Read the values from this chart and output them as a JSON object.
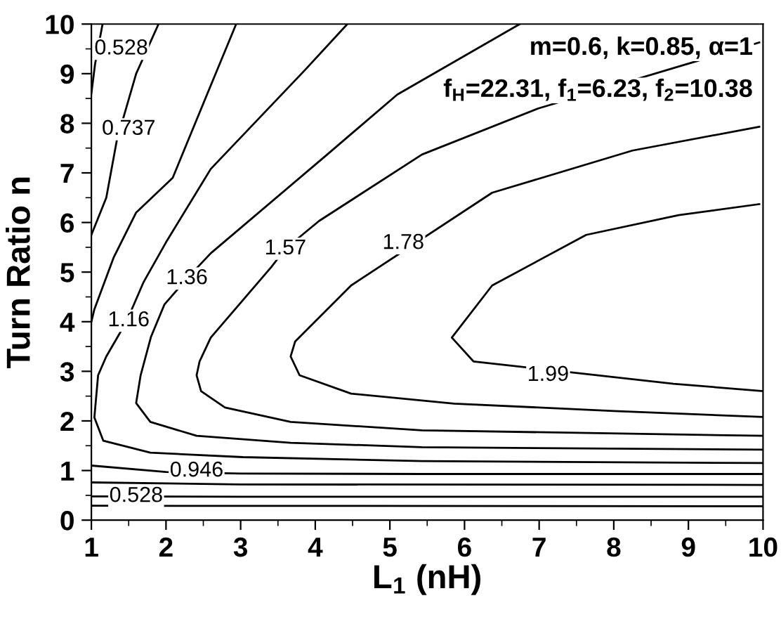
{
  "chart_data": {
    "type": "line",
    "xlabel": "L$_{1}$ (nH)",
    "ylabel": "Turn Ratio n",
    "xlim": [
      1,
      10
    ],
    "ylim": [
      0,
      10
    ],
    "xticks": [
      1,
      2,
      3,
      4,
      5,
      6,
      7,
      8,
      9,
      10
    ],
    "yticks": [
      0,
      1,
      2,
      3,
      4,
      5,
      6,
      7,
      8,
      9,
      10
    ],
    "series": [
      {
        "color": "#000000",
        "x": [
          1.0,
          1.05,
          1.15,
          null,
          1.0,
          3,
          10
        ],
        "values": [
          8.6,
          9.2,
          10,
          null,
          0.48,
          0.47,
          0.47
        ]
      },
      {
        "color": "#000000",
        "x": [
          1.0,
          1.2,
          1.34,
          1.6,
          1.9,
          null,
          1,
          3,
          10
        ],
        "values": [
          5.75,
          6.5,
          7.65,
          9.0,
          10,
          null,
          0.76,
          0.72,
          0.71
        ]
      },
      {
        "color": "#000000",
        "x": [
          1.0,
          1.04,
          1.3,
          1.6,
          2.09,
          2.5,
          2.94,
          null,
          1,
          2,
          3,
          5.43,
          10
        ],
        "values": [
          4.0,
          4.25,
          5.3,
          6.2,
          6.9,
          8.4,
          10,
          null,
          1.1,
          0.97,
          0.94,
          0.93,
          0.93
        ]
      },
      {
        "color": "#000000",
        "x": [
          4.43,
          3.86,
          2.6,
          2.0,
          1.7,
          1.47,
          1.2,
          1.09,
          1.04,
          1.16,
          1.79,
          3.03,
          5.43,
          10
        ],
        "values": [
          10,
          9.07,
          7.08,
          5.6,
          4.8,
          4.0,
          3.3,
          2.92,
          2.07,
          1.6,
          1.36,
          1.27,
          1.19,
          1.15
        ]
      },
      {
        "color": "#000000",
        "x": [
          6.74,
          5.1,
          4.16,
          2.6,
          2.28,
          1.98,
          1.8,
          1.66,
          1.6,
          1.79,
          2.41,
          3.67,
          5.43,
          10
        ],
        "values": [
          10,
          8.58,
          7.37,
          5.38,
          4.87,
          4.35,
          3.7,
          2.92,
          2.36,
          1.98,
          1.7,
          1.56,
          1.47,
          1.42
        ]
      },
      {
        "color": "#000000",
        "x": [
          9.95,
          6.99,
          5.43,
          4.05,
          3.6,
          3.41,
          2.6,
          2.45,
          2.41,
          2.47,
          2.79,
          3.67,
          5.43,
          10
        ],
        "values": [
          9.63,
          8.3,
          7.37,
          6.03,
          5.47,
          5.1,
          3.68,
          3.2,
          2.92,
          2.6,
          2.27,
          1.98,
          1.81,
          1.7
        ]
      },
      {
        "color": "#000000",
        "x": [
          9.95,
          8.25,
          6.37,
          4.48,
          3.73,
          3.67,
          3.79,
          4.48,
          5.86,
          8,
          10
        ],
        "values": [
          7.93,
          7.45,
          6.6,
          4.73,
          3.6,
          3.3,
          2.92,
          2.55,
          2.35,
          2.2,
          2.08
        ]
      },
      {
        "color": "#000000",
        "x": [
          9.95,
          8.87,
          7.63,
          6.37,
          5.83,
          6.12,
          8.8,
          10
        ],
        "values": [
          6.37,
          6.15,
          5.75,
          4.73,
          3.68,
          3.2,
          2.75,
          2.6
        ]
      },
      {
        "color": "#000000",
        "x": [
          1,
          10
        ],
        "values": [
          0.29,
          0.28
        ]
      }
    ],
    "annotations": [
      {
        "text": "0.528",
        "x": 1.4,
        "y": 9.5
      },
      {
        "text": "0.737",
        "x": 1.5,
        "y": 7.88
      },
      {
        "text": "1.16",
        "x": 1.5,
        "y": 4.02
      },
      {
        "text": "1.36",
        "x": 2.28,
        "y": 4.87
      },
      {
        "text": "1.57",
        "x": 3.6,
        "y": 5.47
      },
      {
        "text": "1.78",
        "x": 5.18,
        "y": 5.58
      },
      {
        "text": "1.99",
        "x": 7.12,
        "y": 2.92
      },
      {
        "text": "0.946",
        "x": 2.41,
        "y": 0.99
      },
      {
        "text": "0.528",
        "x": 1.6,
        "y": 0.48
      },
      "m=0.6, k=0.85, α=1",
      "f$_{H}$=22.31, f$_{1}$=6.23, f$_{2}$=10.38"
    ]
  }
}
